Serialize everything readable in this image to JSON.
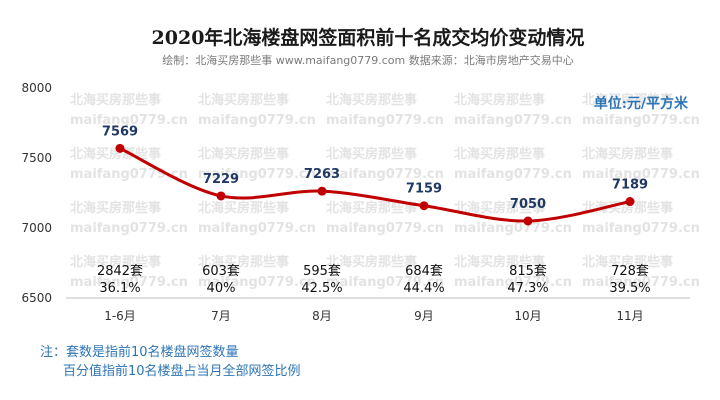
{
  "header": {
    "title": "2020年北海楼盘网签面积前十名成交均价变动情况",
    "subtitle": "绘制：北海买房那些事 www.maifang0779.com  数据来源：北海市房地产交易中心",
    "unit": "单位:元/平方米"
  },
  "watermark": {
    "line_a": "北海买房那些事",
    "line_b": "maifang0779.cn"
  },
  "chart_data": {
    "type": "line",
    "categories": [
      "1-6月",
      "7月",
      "8月",
      "9月",
      "10月",
      "11月"
    ],
    "values": [
      7569,
      7229,
      7263,
      7159,
      7050,
      7189
    ],
    "ylim": [
      6500,
      8000
    ],
    "yticks": [
      6500,
      7000,
      7500,
      8000
    ],
    "grid": false,
    "line_color": "#c00000",
    "label_color": "#1f3864",
    "annotations": {
      "counts": [
        "2842套",
        "603套",
        "595套",
        "684套",
        "815套",
        "728套"
      ],
      "percents": [
        "36.1%",
        "40%",
        "42.5%",
        "44.4%",
        "47.3%",
        "39.5%"
      ]
    }
  },
  "notes": {
    "line1": "注：套数是指前10名楼盘网签数量",
    "line2": "百分值指前10名楼盘占当月全部网签比例",
    "color": "#2e75b6"
  },
  "colors": {
    "axis": "#bfbfbf",
    "unit": "#2e75b6"
  }
}
